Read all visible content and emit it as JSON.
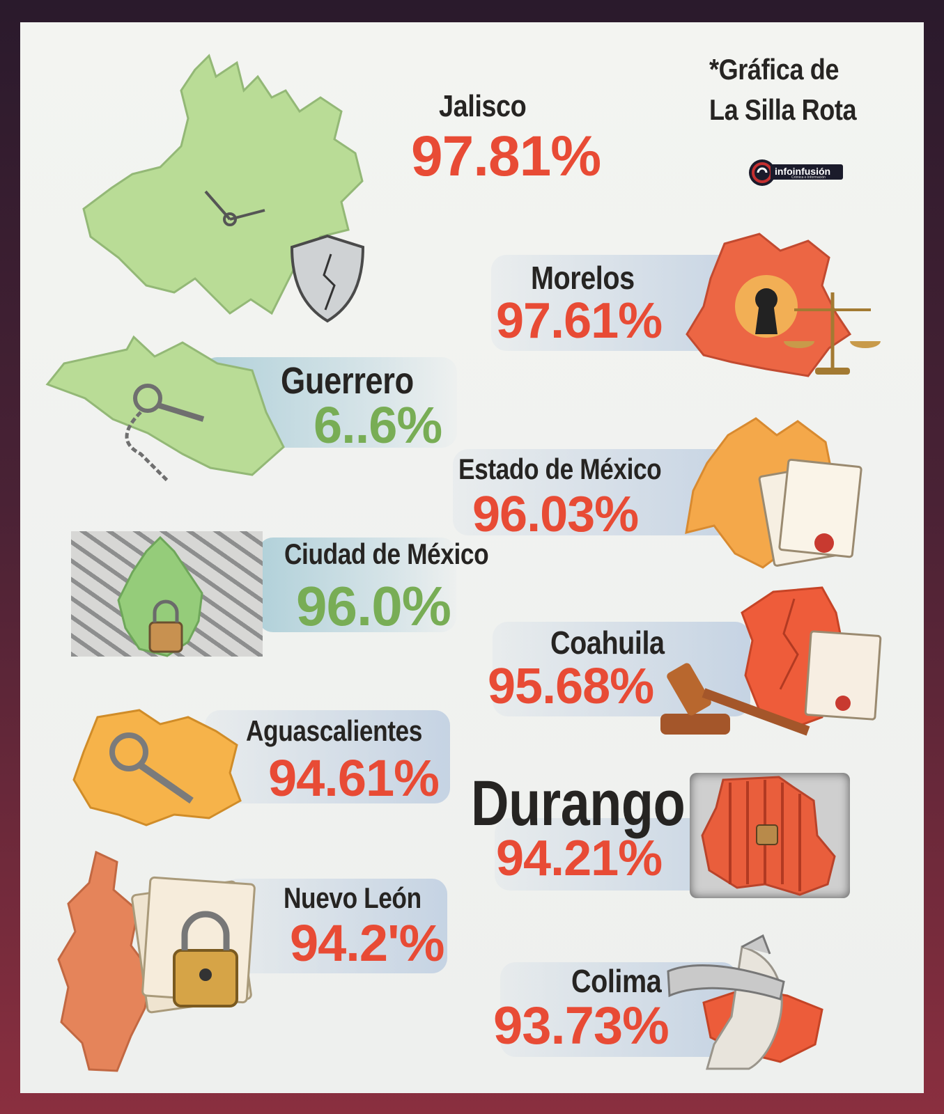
{
  "credit": {
    "line1": "*Gráfica de",
    "line2": "La Silla Rota"
  },
  "logo": {
    "name": "infoinfusión",
    "tagline": "Crónica e Información",
    "colors": [
      "#1b1b2b",
      "#c42f30"
    ]
  },
  "states": [
    {
      "name": "Jalisco",
      "value": "97.81%",
      "icon": "clock-shield-icon",
      "color": "#e84b35"
    },
    {
      "name": "Morelos",
      "value": "97.61%",
      "icon": "keyhole-scales-icon",
      "color": "#e84b35"
    },
    {
      "name": "Guerrero",
      "value": "6..6%",
      "icon": "key-chain-icon",
      "color": "#78ad55"
    },
    {
      "name": "Estado de México",
      "value": "96.03%",
      "icon": "documents-icon",
      "color": "#e84b35"
    },
    {
      "name": "Ciudad de México",
      "value": "96.0%",
      "icon": "maze-padlock-icon",
      "color": "#78ad55"
    },
    {
      "name": "Coahuila",
      "value": "95.68%",
      "icon": "gavel-icon",
      "color": "#e84b35"
    },
    {
      "name": "Aguascalientes",
      "value": "94.61%",
      "icon": "key-icon",
      "color": "#e84b35"
    },
    {
      "name": "Durango",
      "value": "94.21%",
      "icon": "prison-bars-icon",
      "color": "#e84b35"
    },
    {
      "name": "Nuevo León",
      "value": "94.2'%",
      "icon": "padlock-papers-icon",
      "color": "#e84b35"
    },
    {
      "name": "Colima",
      "value": "93.73%",
      "icon": "blindfold-justice-icon",
      "color": "#e84b35"
    }
  ]
}
